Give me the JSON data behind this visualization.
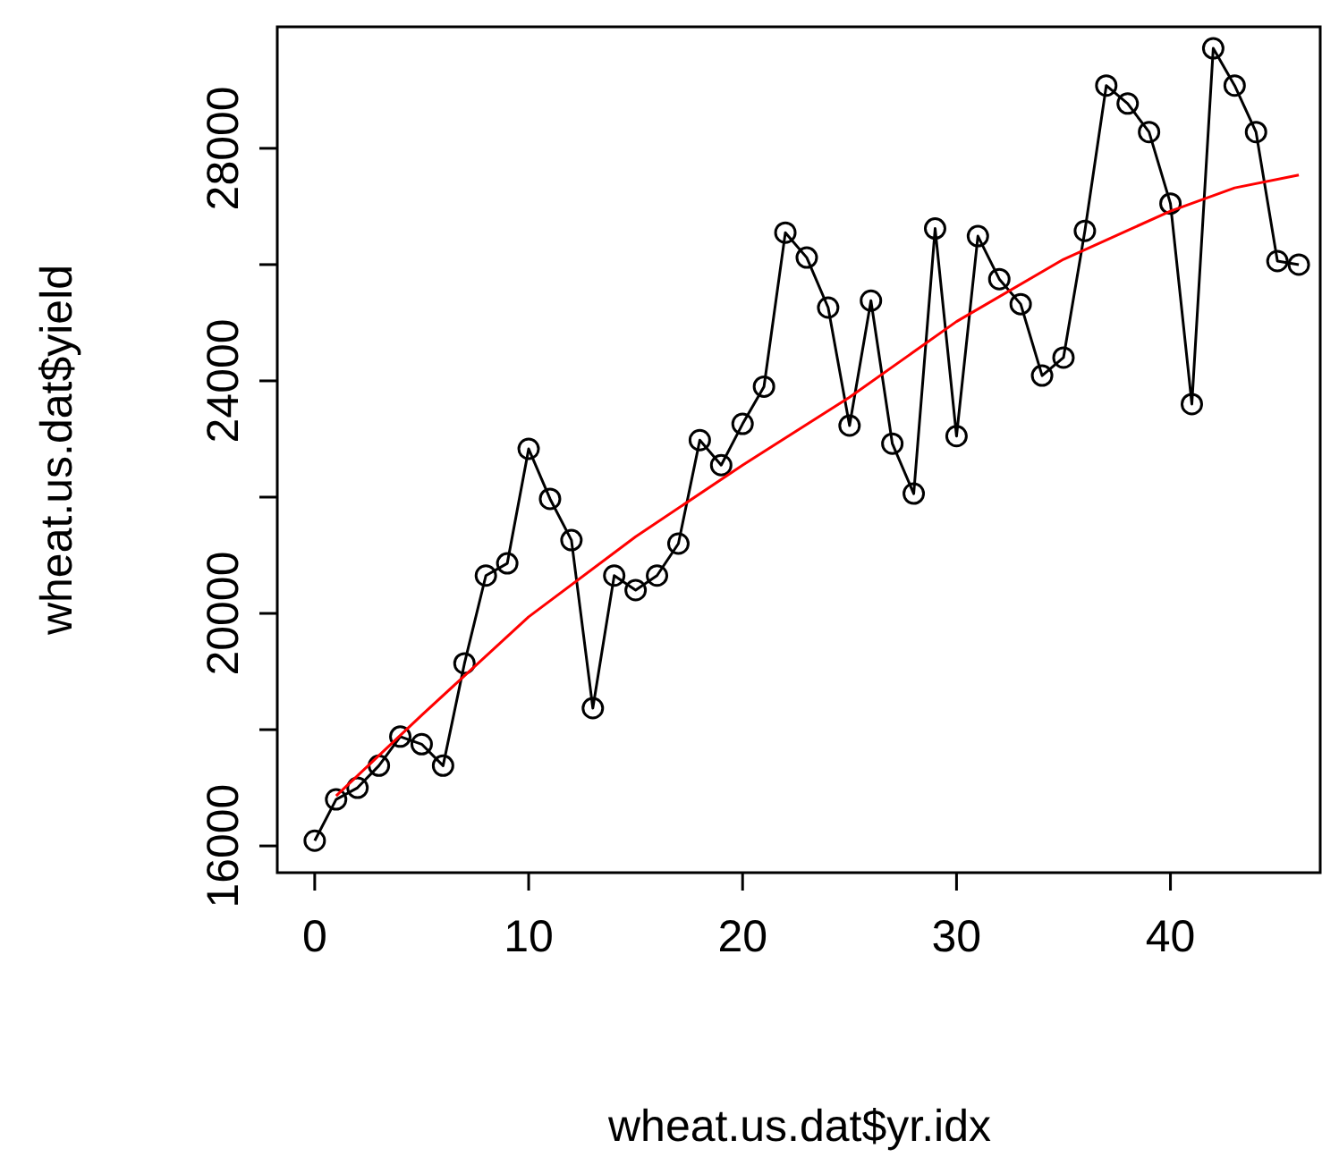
{
  "chart_data": {
    "type": "line",
    "xlabel": "wheat.us.dat$yr.idx",
    "ylabel": "wheat.us.dat$yield",
    "xlim": [
      -1.75,
      47
    ],
    "ylim": [
      15540,
      30090
    ],
    "xticks": [
      0,
      10,
      20,
      30,
      40
    ],
    "yticks": [
      16000,
      {
        "value": 18000,
        "label": null
      },
      20000,
      {
        "value": 22000,
        "label": null
      },
      24000,
      {
        "value": 26000,
        "label": null
      },
      28000
    ],
    "grid": false,
    "series": [
      {
        "color": "#000000",
        "marker": "circle",
        "line_style": "solid",
        "x": [
          0,
          1,
          2,
          3,
          4,
          5,
          6,
          7,
          8,
          9,
          10,
          11,
          12,
          13,
          14,
          15,
          16,
          17,
          18,
          19,
          20,
          21,
          22,
          23,
          24,
          25,
          26,
          27,
          28,
          29,
          30,
          31,
          32,
          33,
          34,
          35,
          36,
          37,
          38,
          39,
          40,
          41,
          42,
          43,
          44,
          45,
          46
        ],
        "values": [
          16090,
          16800,
          17000,
          17380,
          17880,
          17750,
          17380,
          19140,
          20650,
          20860,
          22830,
          21970,
          21260,
          18370,
          20650,
          20400,
          20650,
          21200,
          22980,
          22550,
          23260,
          23900,
          26550,
          26120,
          25260,
          23230,
          25380,
          22920,
          22060,
          26620,
          23050,
          26490,
          25750,
          25320,
          24090,
          24400,
          26580,
          29080,
          28770,
          28280,
          27050,
          23600,
          29720,
          29080,
          28280,
          26060,
          26000
        ]
      },
      {
        "color": "#ff0000",
        "marker": "none",
        "line_style": "solid",
        "x": [
          1,
          5,
          10,
          15,
          20,
          25,
          30,
          35,
          40,
          43,
          46
        ],
        "values": [
          16860,
          18250,
          19940,
          21320,
          22550,
          23720,
          25020,
          26090,
          26920,
          27320,
          27540
        ]
      }
    ]
  }
}
